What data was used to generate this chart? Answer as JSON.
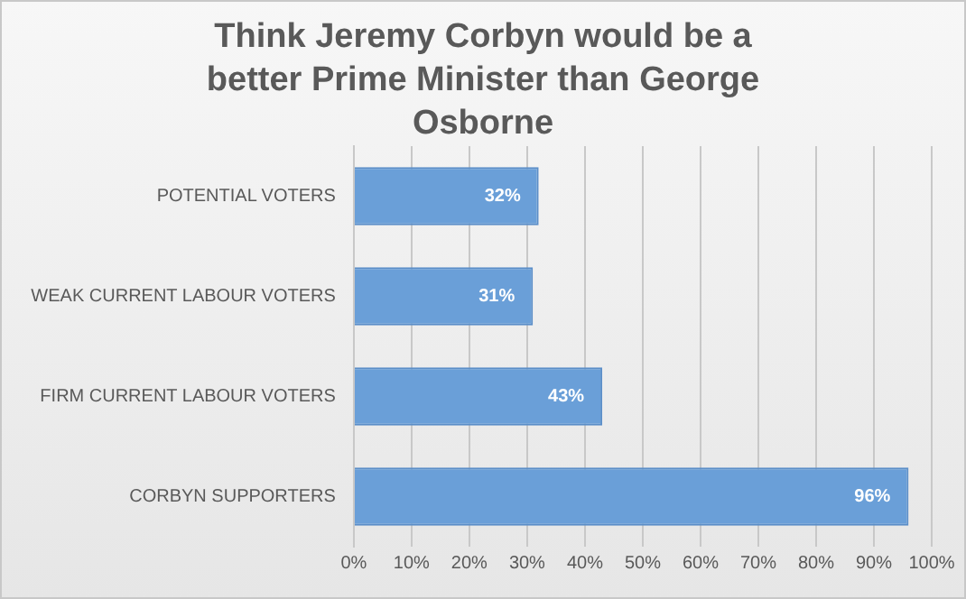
{
  "chart_data": {
    "type": "bar",
    "orientation": "horizontal",
    "title": "Think Jeremy Corbyn would be a better Prime Minister than George Osborne",
    "categories": [
      "POTENTIAL VOTERS",
      "WEAK CURRENT LABOUR VOTERS",
      "FIRM CURRENT LABOUR VOTERS",
      "CORBYN SUPPORTERS"
    ],
    "values": [
      32,
      31,
      43,
      96
    ],
    "value_labels": [
      "32%",
      "31%",
      "43%",
      "96%"
    ],
    "color": "#6a9fd8",
    "xlim": [
      0,
      100
    ],
    "xticks": [
      {
        "value": 0,
        "label": "0%"
      },
      {
        "value": 10,
        "label": "10%"
      },
      {
        "value": 20,
        "label": "20%"
      },
      {
        "value": 30,
        "label": "30%"
      },
      {
        "value": 40,
        "label": "40%"
      },
      {
        "value": 50,
        "label": "50%"
      },
      {
        "value": 60,
        "label": "60%"
      },
      {
        "value": 70,
        "label": "70%"
      },
      {
        "value": 80,
        "label": "80%"
      },
      {
        "value": 90,
        "label": "90%"
      },
      {
        "value": 100,
        "label": "100%"
      }
    ],
    "grid": "x",
    "legend": false
  }
}
